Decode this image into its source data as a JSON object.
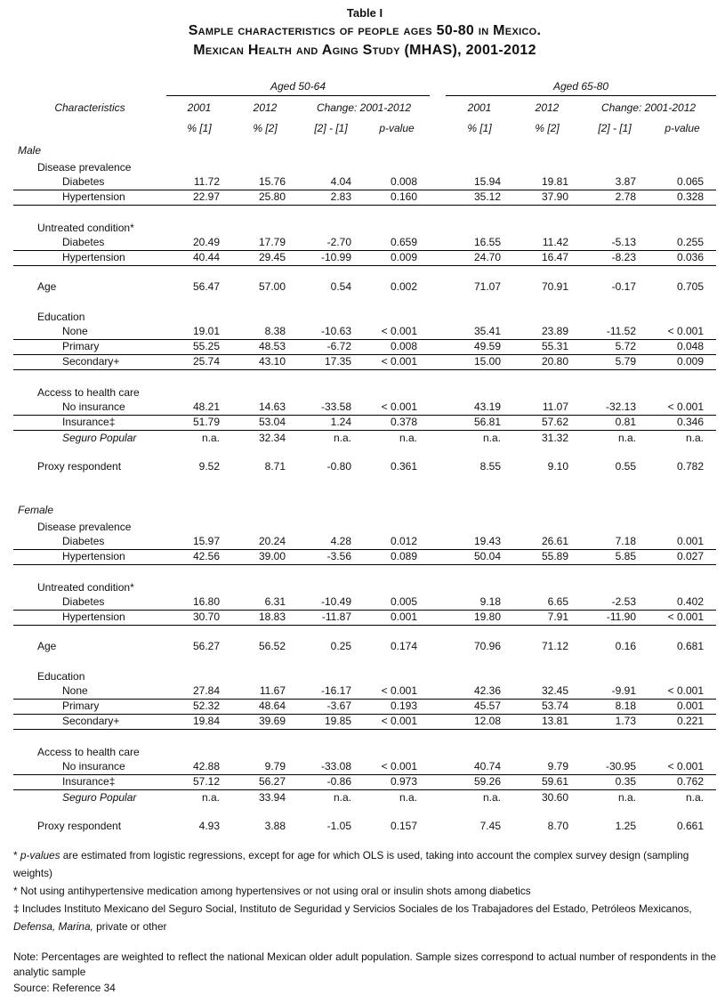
{
  "colors": {
    "background": "#ffffff",
    "text": "#111111",
    "rule": "#000000"
  },
  "title": {
    "table_label": "Table I",
    "line1": "Sample characteristics of people ages 50-80 in Mexico.",
    "line2": "Mexican Health and Aging Study (MHAS), 2001-2012"
  },
  "header": {
    "characteristics": "Characteristics",
    "group1": "Aged 50-64",
    "group2": "Aged 65-80",
    "col_2001": "2001",
    "col_2012": "2012",
    "col_change": "Change: 2001-2012",
    "sub": [
      "% [1]",
      "% [2]",
      "[2] - [1]",
      "p-value"
    ]
  },
  "table": {
    "rows": [
      {
        "type": "section",
        "label": "Male",
        "indent": 0
      },
      {
        "type": "group",
        "label": "Disease prevalence",
        "indent": 1
      },
      {
        "type": "data",
        "label": "Diabetes",
        "indent": 2,
        "rule": true,
        "values": [
          "11.72",
          "15.76",
          "4.04",
          "0.008",
          "15.94",
          "19.81",
          "3.87",
          "0.065"
        ]
      },
      {
        "type": "data",
        "label": "Hypertension",
        "indent": 2,
        "rule": true,
        "values": [
          "22.97",
          "25.80",
          "2.83",
          "0.160",
          "35.12",
          "37.90",
          "2.78",
          "0.328"
        ]
      },
      {
        "type": "spacer"
      },
      {
        "type": "group",
        "label": "Untreated condition*",
        "indent": 1
      },
      {
        "type": "data",
        "label": "Diabetes",
        "indent": 2,
        "rule": true,
        "values": [
          "20.49",
          "17.79",
          "-2.70",
          "0.659",
          "16.55",
          "11.42",
          "-5.13",
          "0.255"
        ]
      },
      {
        "type": "data",
        "label": "Hypertension",
        "indent": 2,
        "rule": true,
        "values": [
          "40.44",
          "29.45",
          "-10.99",
          "0.009",
          "24.70",
          "16.47",
          "-8.23",
          "0.036"
        ]
      },
      {
        "type": "spacer"
      },
      {
        "type": "standalone",
        "label": "Age",
        "indent": 1,
        "values": [
          "56.47",
          "57.00",
          "0.54",
          "0.002",
          "71.07",
          "70.91",
          "-0.17",
          "0.705"
        ]
      },
      {
        "type": "spacer"
      },
      {
        "type": "group",
        "label": "Education",
        "indent": 1
      },
      {
        "type": "data",
        "label": "None",
        "indent": 2,
        "rule": true,
        "values": [
          "19.01",
          "8.38",
          "-10.63",
          "< 0.001",
          "35.41",
          "23.89",
          "-11.52",
          "< 0.001"
        ]
      },
      {
        "type": "data",
        "label": "Primary",
        "indent": 2,
        "rule": true,
        "values": [
          "55.25",
          "48.53",
          "-6.72",
          "0.008",
          "49.59",
          "55.31",
          "5.72",
          "0.048"
        ]
      },
      {
        "type": "data",
        "label": "Secondary+",
        "indent": 2,
        "rule": true,
        "values": [
          "25.74",
          "43.10",
          "17.35",
          "< 0.001",
          "15.00",
          "20.80",
          "5.79",
          "0.009"
        ]
      },
      {
        "type": "spacer"
      },
      {
        "type": "group",
        "label": "Access to health care",
        "indent": 1
      },
      {
        "type": "data",
        "label": "No insurance",
        "indent": 2,
        "rule": true,
        "values": [
          "48.21",
          "14.63",
          "-33.58",
          "< 0.001",
          "43.19",
          "11.07",
          "-32.13",
          "< 0.001"
        ]
      },
      {
        "type": "data",
        "label": "Insurance‡",
        "indent": 2,
        "rule": true,
        "values": [
          "51.79",
          "53.04",
          "1.24",
          "0.378",
          "56.81",
          "57.62",
          "0.81",
          "0.346"
        ]
      },
      {
        "type": "data",
        "label": "Seguro Popular",
        "indent": 2,
        "italic": true,
        "values": [
          "n.a.",
          "32.34",
          "n.a.",
          "n.a.",
          "n.a.",
          "31.32",
          "n.a.",
          "n.a."
        ]
      },
      {
        "type": "spacer"
      },
      {
        "type": "standalone",
        "label": "Proxy respondent",
        "indent": 1,
        "values": [
          "9.52",
          "8.71",
          "-0.80",
          "0.361",
          "8.55",
          "9.10",
          "0.55",
          "0.782"
        ]
      },
      {
        "type": "spacer",
        "big": true
      },
      {
        "type": "section",
        "label": "Female",
        "indent": 0
      },
      {
        "type": "group",
        "label": "Disease prevalence",
        "indent": 1
      },
      {
        "type": "data",
        "label": "Diabetes",
        "indent": 2,
        "rule": true,
        "values": [
          "15.97",
          "20.24",
          "4.28",
          "0.012",
          "19.43",
          "26.61",
          "7.18",
          "0.001"
        ]
      },
      {
        "type": "data",
        "label": "Hypertension",
        "indent": 2,
        "rule": true,
        "values": [
          "42.56",
          "39.00",
          "-3.56",
          "0.089",
          "50.04",
          "55.89",
          "5.85",
          "0.027"
        ]
      },
      {
        "type": "spacer"
      },
      {
        "type": "group",
        "label": "Untreated condition*",
        "indent": 1
      },
      {
        "type": "data",
        "label": "Diabetes",
        "indent": 2,
        "rule": true,
        "values": [
          "16.80",
          "6.31",
          "-10.49",
          "0.005",
          "9.18",
          "6.65",
          "-2.53",
          "0.402"
        ]
      },
      {
        "type": "data",
        "label": "Hypertension",
        "indent": 2,
        "rule": true,
        "values": [
          "30.70",
          "18.83",
          "-11.87",
          "0.001",
          "19.80",
          "7.91",
          "-11.90",
          "< 0.001"
        ]
      },
      {
        "type": "spacer"
      },
      {
        "type": "standalone",
        "label": "Age",
        "indent": 1,
        "values": [
          "56.27",
          "56.52",
          "0.25",
          "0.174",
          "70.96",
          "71.12",
          "0.16",
          "0.681"
        ]
      },
      {
        "type": "spacer"
      },
      {
        "type": "group",
        "label": "Education",
        "indent": 1
      },
      {
        "type": "data",
        "label": "None",
        "indent": 2,
        "rule": true,
        "values": [
          "27.84",
          "11.67",
          "-16.17",
          "< 0.001",
          "42.36",
          "32.45",
          "-9.91",
          "< 0.001"
        ]
      },
      {
        "type": "data",
        "label": "Primary",
        "indent": 2,
        "rule": true,
        "values": [
          "52.32",
          "48.64",
          "-3.67",
          "0.193",
          "45.57",
          "53.74",
          "8.18",
          "0.001"
        ]
      },
      {
        "type": "data",
        "label": "Secondary+",
        "indent": 2,
        "rule": true,
        "values": [
          "19.84",
          "39.69",
          "19.85",
          "< 0.001",
          "12.08",
          "13.81",
          "1.73",
          "0.221"
        ]
      },
      {
        "type": "spacer"
      },
      {
        "type": "group",
        "label": "Access to health care",
        "indent": 1
      },
      {
        "type": "data",
        "label": "No insurance",
        "indent": 2,
        "rule": true,
        "values": [
          "42.88",
          "9.79",
          "-33.08",
          "< 0.001",
          "40.74",
          "9.79",
          "-30.95",
          "< 0.001"
        ]
      },
      {
        "type": "data",
        "label": "Insurance‡",
        "indent": 2,
        "rule": true,
        "values": [
          "57.12",
          "56.27",
          "-0.86",
          "0.973",
          "59.26",
          "59.61",
          "0.35",
          "0.762"
        ]
      },
      {
        "type": "data",
        "label": "Seguro Popular",
        "indent": 2,
        "italic": true,
        "values": [
          "n.a.",
          "33.94",
          "n.a.",
          "n.a.",
          "n.a.",
          "30.60",
          "n.a.",
          "n.a."
        ]
      },
      {
        "type": "spacer"
      },
      {
        "type": "standalone",
        "label": "Proxy respondent",
        "indent": 1,
        "values": [
          "4.93",
          "3.88",
          "-1.05",
          "0.157",
          "7.45",
          "8.70",
          "1.25",
          "0.661"
        ]
      }
    ]
  },
  "footnotes": {
    "fn1_marker": "*",
    "fn1_italic": "p-values",
    "fn1_rest": " are estimated from logistic regressions, except for age for which OLS is used, taking into account the complex survey design (sampling weights)",
    "fn2_marker": "*",
    "fn2": "Not using antihypertensive medication among hypertensives or not using oral or insulin shots among diabetics",
    "fn3_marker": "‡",
    "fn3_part1": "Includes Instituto Mexicano del Seguro Social, Instituto de Seguridad y Servicios Sociales de los Trabajadores del Estado, Petróleos Mexicanos,",
    "fn3_italic": "Defensa, Marina,",
    "fn3_part2": "private or other",
    "note": "Note: Percentages are weighted to reflect the national Mexican older adult population. Sample sizes correspond to actual number of respondents in the analytic sample",
    "source": "Source: Reference 34"
  }
}
